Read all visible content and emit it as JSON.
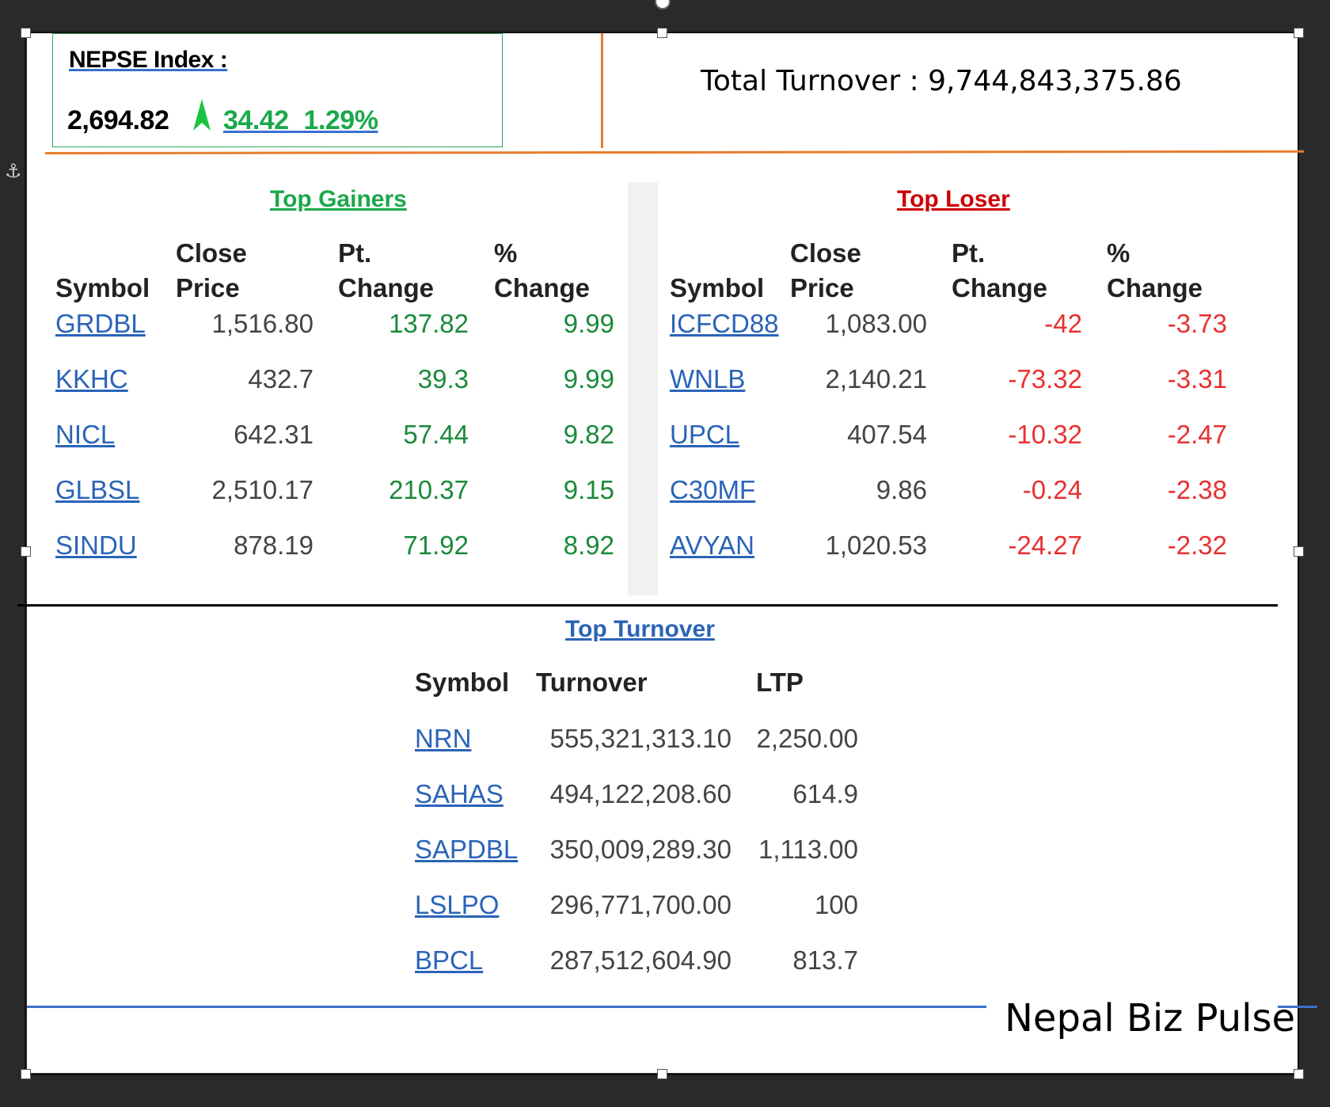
{
  "header": {
    "index_title": "NEPSE Index :",
    "index_value": "2,694.82",
    "index_change": "34.42 1.29%",
    "total_turnover": "Total Turnover : 9,744,843,375.86"
  },
  "top_gainers": {
    "title": "Top Gainers",
    "columns": [
      "Symbol",
      "Close Price",
      "Pt. Change",
      "% Change"
    ],
    "rows": [
      {
        "symbol": "GRDBL",
        "close": "1,516.80",
        "pt": "137.82",
        "pct": "9.99"
      },
      {
        "symbol": "KKHC",
        "close": "432.7",
        "pt": "39.3",
        "pct": "9.99"
      },
      {
        "symbol": "NICL",
        "close": "642.31",
        "pt": "57.44",
        "pct": "9.82"
      },
      {
        "symbol": "GLBSL",
        "close": "2,510.17",
        "pt": "210.37",
        "pct": "9.15"
      },
      {
        "symbol": "SINDU",
        "close": "878.19",
        "pt": "71.92",
        "pct": "8.92"
      }
    ]
  },
  "top_losers": {
    "title": "Top Loser",
    "columns": [
      "Symbol",
      "Close Price",
      "Pt. Change",
      "% Change"
    ],
    "rows": [
      {
        "symbol": "ICFCD88",
        "close": "1,083.00",
        "pt": "-42",
        "pct": "-3.73"
      },
      {
        "symbol": "WNLB",
        "close": "2,140.21",
        "pt": "-73.32",
        "pct": "-3.31"
      },
      {
        "symbol": "UPCL",
        "close": "407.54",
        "pt": "-10.32",
        "pct": "-2.47"
      },
      {
        "symbol": "C30MF",
        "close": "9.86",
        "pt": "-0.24",
        "pct": "-2.38"
      },
      {
        "symbol": "AVYAN",
        "close": "1,020.53",
        "pt": "-24.27",
        "pct": "-2.32"
      }
    ]
  },
  "top_turnover": {
    "title": "Top Turnover",
    "columns": [
      "Symbol",
      "Turnover",
      "LTP"
    ],
    "rows": [
      {
        "symbol": "NRN",
        "turnover": "555,321,313.10",
        "ltp": "2,250.00"
      },
      {
        "symbol": "SAHAS",
        "turnover": "494,122,208.60",
        "ltp": "614.9"
      },
      {
        "symbol": "SAPDBL",
        "turnover": "350,009,289.30",
        "ltp": "1,113.00"
      },
      {
        "symbol": "LSLPO",
        "turnover": "296,771,700.00",
        "ltp": "100"
      },
      {
        "symbol": "BPCL",
        "turnover": "287,512,604.90",
        "ltp": "813.7"
      }
    ]
  },
  "footer": {
    "brand": "Nepal Biz Pulse"
  },
  "colors": {
    "gain": "#1a8a3a",
    "loss": "#e83030",
    "link": "#2a64b8",
    "accent_orange": "#e87d2d"
  }
}
